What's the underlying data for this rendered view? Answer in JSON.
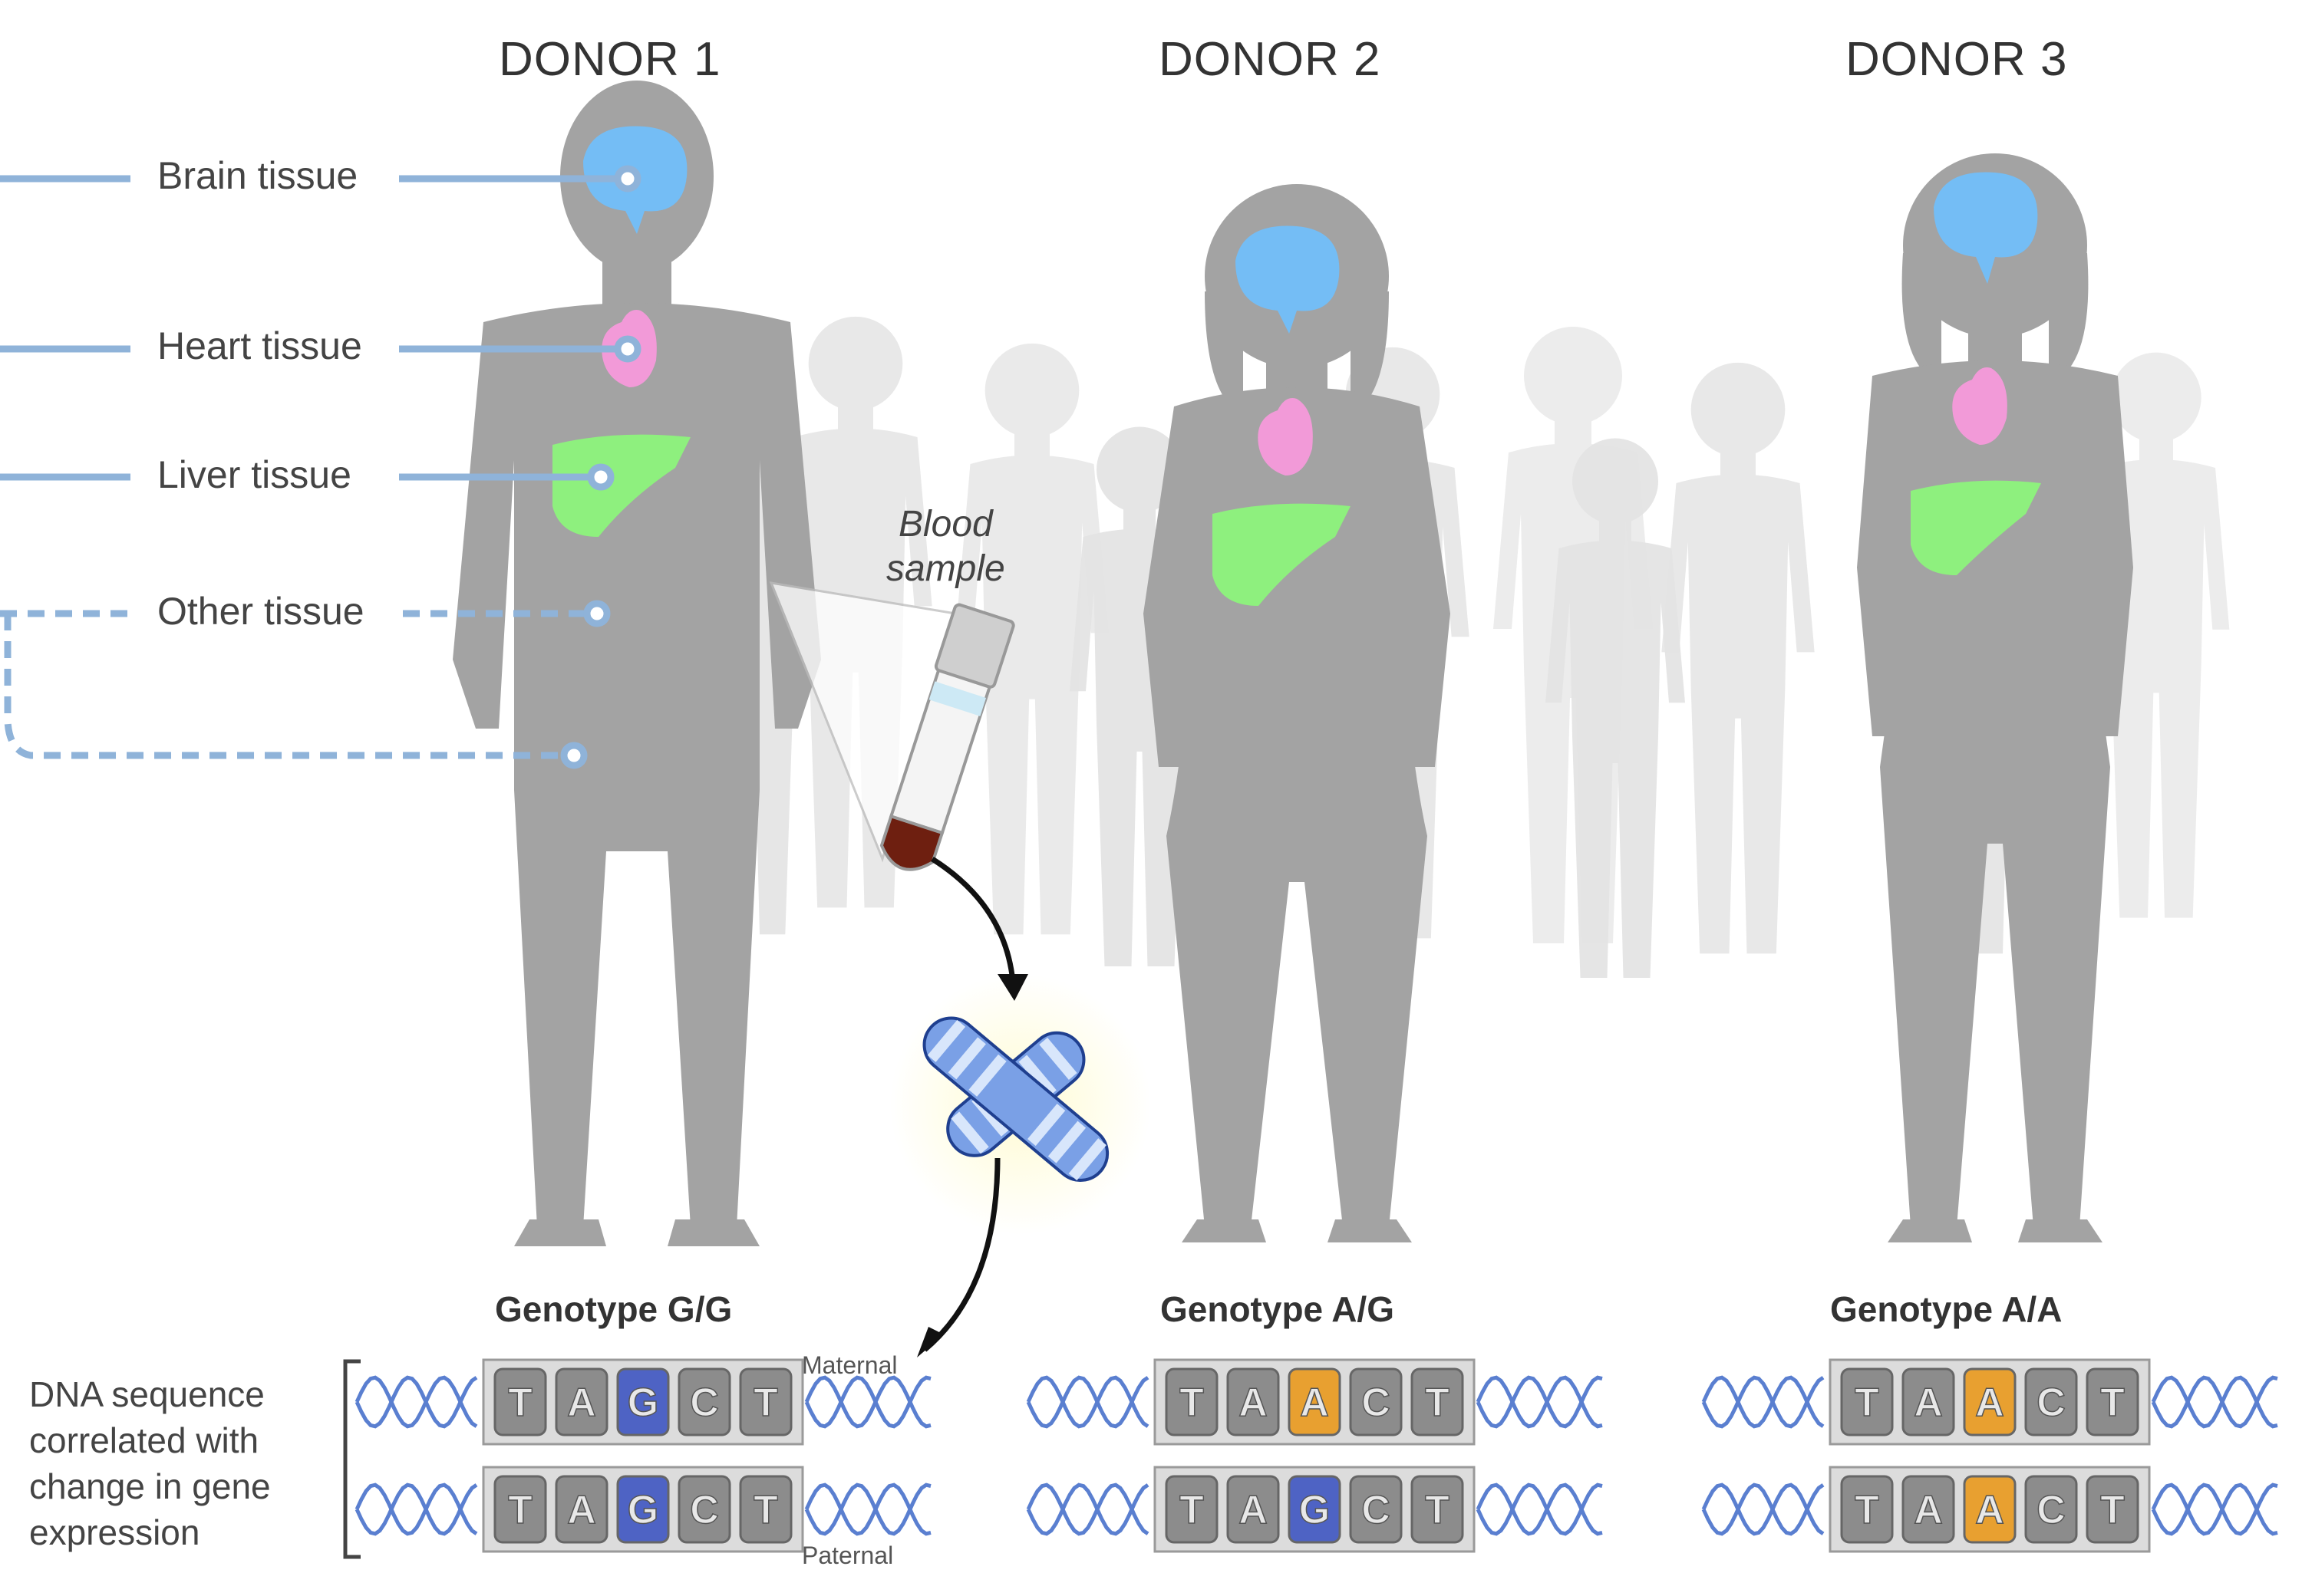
{
  "donors": [
    {
      "title": "DONOR 1",
      "genotype": "Genotype G/G",
      "maternal": [
        "T",
        "A",
        "G",
        "C",
        "T"
      ],
      "paternal": [
        "T",
        "A",
        "G",
        "C",
        "T"
      ]
    },
    {
      "title": "DONOR 2",
      "genotype": "Genotype A/G",
      "maternal": [
        "T",
        "A",
        "A",
        "C",
        "T"
      ],
      "paternal": [
        "T",
        "A",
        "G",
        "C",
        "T"
      ]
    },
    {
      "title": "DONOR 3",
      "genotype": "Genotype A/A",
      "maternal": [
        "T",
        "A",
        "A",
        "C",
        "T"
      ],
      "paternal": [
        "T",
        "A",
        "A",
        "C",
        "T"
      ]
    }
  ],
  "tissues": {
    "brain": "Brain tissue",
    "heart": "Heart tissue",
    "liver": "Liver tissue",
    "other": "Other tissue"
  },
  "blood_sample": {
    "line1": "Blood",
    "line2": "sample"
  },
  "strands": {
    "maternal": "Maternal",
    "paternal": "Paternal"
  },
  "dna_caption": "DNA sequence correlated with change in gene expression",
  "colors": {
    "body": "#a3a3a3",
    "crowd": "#e4e4e4",
    "brain": "#74bdf5",
    "heart": "#f29ad8",
    "liver": "#8ef07e",
    "allele_G": "#4e63c4",
    "allele_A": "#e8a030",
    "base_tile": "#8c8c8c",
    "helix": "#5a7fd0",
    "connector": "#8fb3d9",
    "blood": "#6e1f10"
  }
}
